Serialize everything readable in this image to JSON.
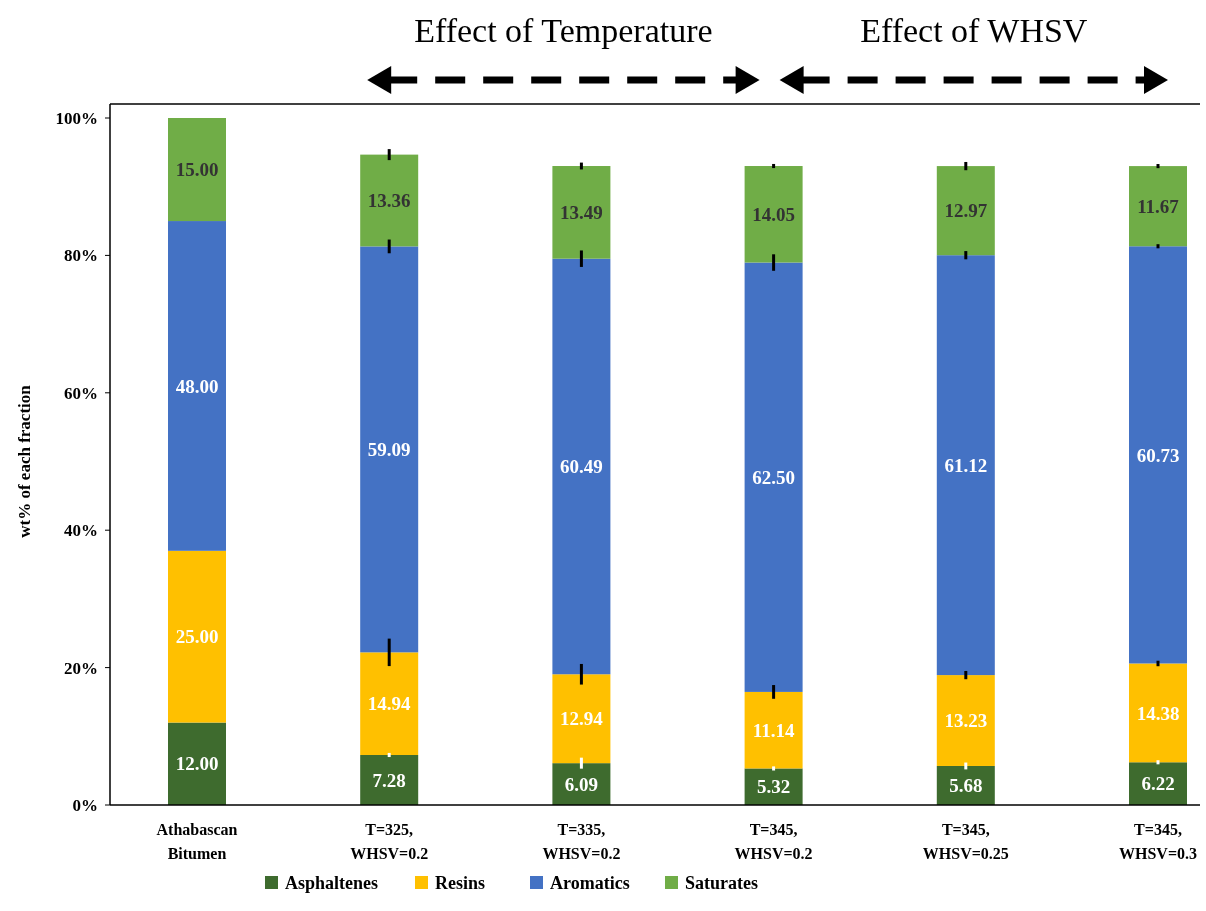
{
  "chart_data": {
    "type": "bar",
    "stacked": true,
    "ylabel": "wt% of each fraction",
    "categories": [
      "Athabascan Bitumen",
      "T=325, WHSV=0.2",
      "T=335, WHSV=0.2",
      "T=345, WHSV=0.2",
      "T=345, WHSV=0.25",
      "T=345, WHSV=0.3"
    ],
    "series": [
      {
        "name": "Asphaltenes",
        "color": "#3e6b2e",
        "values": [
          12.0,
          7.28,
          6.09,
          5.32,
          5.68,
          6.22
        ],
        "value_labels": [
          "12.00",
          "7.28",
          "6.09",
          "5.32",
          "5.68",
          "6.22"
        ],
        "errors": [
          null,
          0.3,
          0.8,
          0.3,
          0.5,
          0.3
        ]
      },
      {
        "name": "Resins",
        "color": "#ffc000",
        "values": [
          25.0,
          14.94,
          12.94,
          11.14,
          13.23,
          14.38
        ],
        "value_labels": [
          "25.00",
          "14.94",
          "12.94",
          "11.14",
          "13.23",
          "14.38"
        ],
        "errors": [
          null,
          2,
          1.5,
          1,
          0.6,
          0.4
        ]
      },
      {
        "name": "Aromatics",
        "color": "#4472c4",
        "values": [
          48.0,
          59.09,
          60.49,
          62.5,
          61.12,
          60.73
        ],
        "value_labels": [
          "48.00",
          "59.09",
          "60.49",
          "62.50",
          "61.12",
          "60.73"
        ],
        "errors": [
          null,
          1,
          1.2,
          1.2,
          0.6,
          0.3
        ]
      },
      {
        "name": "Saturates",
        "color": "#70ad47",
        "values": [
          15.0,
          13.36,
          13.49,
          14.05,
          12.97,
          11.67
        ],
        "value_labels": [
          "15.00",
          "13.36",
          "13.49",
          "14.05",
          "12.97",
          "11.67"
        ],
        "errors": [
          null,
          0.8,
          0.5,
          0.3,
          0.6,
          0.3
        ]
      }
    ],
    "ylim": [
      0,
      100
    ],
    "yticks": [
      {
        "value": 0,
        "label": "0%"
      },
      {
        "value": 20,
        "label": "20%"
      },
      {
        "value": 40,
        "label": "40%"
      },
      {
        "value": 60,
        "label": "60%"
      },
      {
        "value": 80,
        "label": "80%"
      },
      {
        "value": 100,
        "label": "100%"
      }
    ],
    "legend": "bottom",
    "annotations": [
      "Effect of Temperature",
      "Effect of WHSV"
    ]
  }
}
